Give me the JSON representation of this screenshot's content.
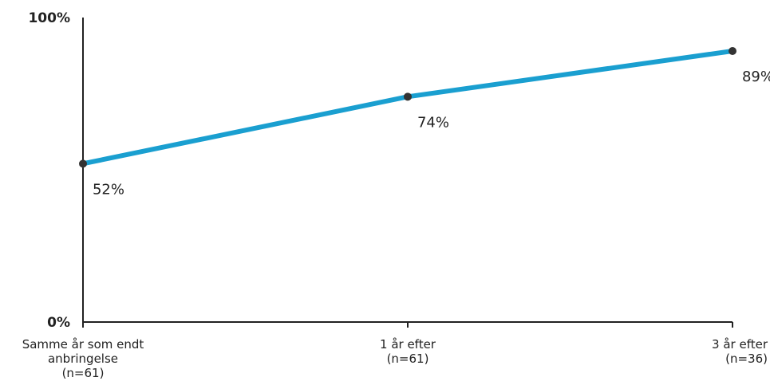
{
  "chart_data": {
    "type": "line",
    "title": "",
    "xlabel": "",
    "ylabel": "",
    "ylim": [
      0,
      100
    ],
    "y_ticks": [
      "0%",
      "100%"
    ],
    "grid": false,
    "categories": [
      [
        "Samme år som endt",
        "anbringelse",
        "(n=61)"
      ],
      [
        "1 år efter",
        "(n=61)"
      ],
      [
        "3 år efter",
        "(n=36)"
      ]
    ],
    "series": [
      {
        "values": [
          52,
          74,
          89
        ],
        "color": "#1a9fd0"
      }
    ],
    "data_labels": [
      "52%",
      "74%",
      "89%"
    ]
  }
}
